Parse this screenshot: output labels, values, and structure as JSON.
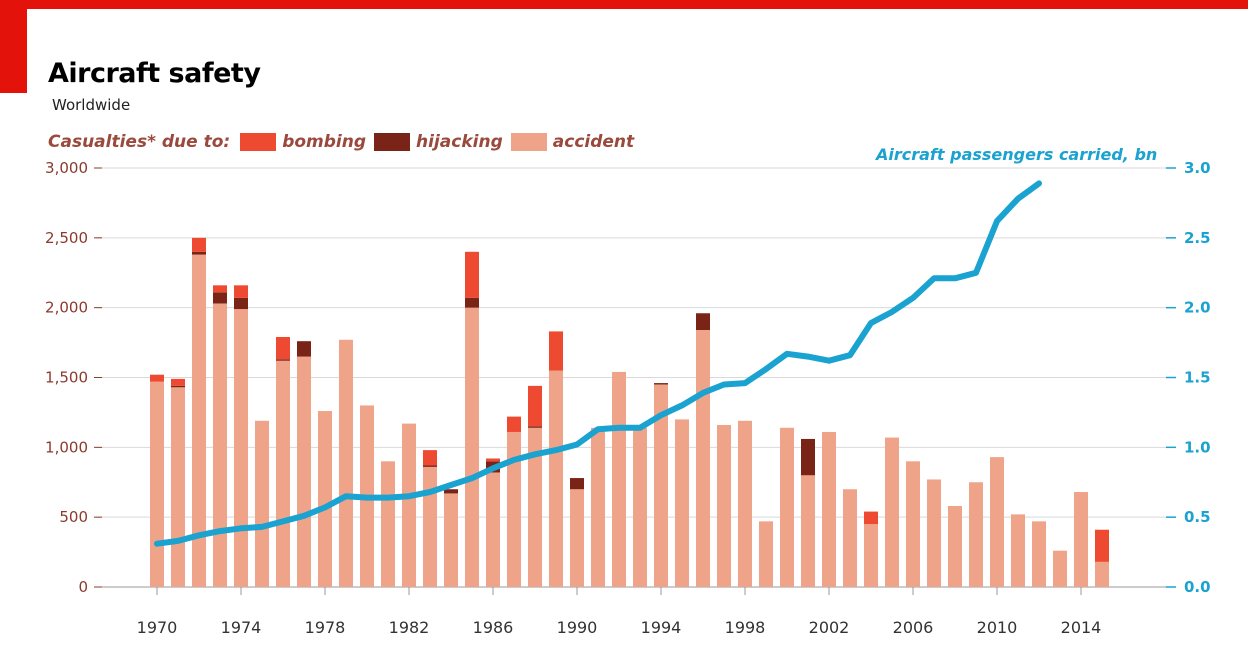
{
  "header": {
    "title": "Aircraft safety",
    "subtitle": "Worldwide"
  },
  "legend": {
    "label": "Casualties* due to:",
    "items": [
      {
        "name": "bombing",
        "color": "#ee4a32"
      },
      {
        "name": "hijacking",
        "color": "#7a2418"
      },
      {
        "name": "accident",
        "color": "#efa48a"
      }
    ]
  },
  "chart_data": {
    "type": "bar",
    "x": [
      1970,
      1971,
      1972,
      1973,
      1974,
      1975,
      1976,
      1977,
      1978,
      1979,
      1980,
      1981,
      1982,
      1983,
      1984,
      1985,
      1986,
      1987,
      1988,
      1989,
      1990,
      1991,
      1992,
      1993,
      1994,
      1995,
      1996,
      1997,
      1998,
      1999,
      2000,
      2001,
      2002,
      2003,
      2004,
      2005,
      2006,
      2007,
      2008,
      2009,
      2010,
      2011,
      2012,
      2013,
      2014,
      2015
    ],
    "x_tick_labels": [
      "1970",
      "1974",
      "1978",
      "1982",
      "1986",
      "1990",
      "1994",
      "1998",
      "2002",
      "2006",
      "2010",
      "2014"
    ],
    "series": [
      {
        "name": "accident",
        "color": "#efa48a",
        "values": [
          1470,
          1430,
          2380,
          2030,
          1990,
          1190,
          1620,
          1650,
          1260,
          1770,
          1300,
          900,
          1170,
          860,
          670,
          2000,
          820,
          1110,
          1140,
          1550,
          700,
          1140,
          1540,
          1140,
          1450,
          1200,
          1840,
          1160,
          1190,
          470,
          1140,
          800,
          1110,
          700,
          450,
          1070,
          900,
          770,
          580,
          750,
          930,
          520,
          470,
          260,
          680,
          180
        ]
      },
      {
        "name": "hijacking",
        "color": "#7a2418",
        "values": [
          0,
          10,
          20,
          80,
          80,
          0,
          10,
          110,
          0,
          0,
          0,
          0,
          0,
          10,
          30,
          70,
          80,
          0,
          10,
          0,
          80,
          0,
          0,
          0,
          10,
          0,
          120,
          0,
          0,
          0,
          0,
          260,
          0,
          0,
          0,
          0,
          0,
          0,
          0,
          0,
          0,
          0,
          0,
          0,
          0,
          0
        ]
      },
      {
        "name": "bombing",
        "color": "#ee4a32",
        "values": [
          50,
          50,
          100,
          50,
          90,
          0,
          160,
          0,
          0,
          0,
          0,
          0,
          0,
          110,
          0,
          330,
          20,
          110,
          290,
          280,
          0,
          0,
          0,
          0,
          0,
          0,
          0,
          0,
          0,
          0,
          0,
          0,
          0,
          0,
          90,
          0,
          0,
          0,
          0,
          0,
          0,
          0,
          0,
          0,
          0,
          230
        ]
      },
      {
        "name": "Aircraft passengers carried, bn",
        "axis": "right",
        "type": "line",
        "color": "#1aa2d0",
        "x": [
          1970,
          1971,
          1972,
          1973,
          1974,
          1975,
          1976,
          1977,
          1978,
          1979,
          1980,
          1981,
          1982,
          1983,
          1984,
          1985,
          1986,
          1987,
          1988,
          1989,
          1990,
          1991,
          1992,
          1993,
          1994,
          1995,
          1996,
          1997,
          1998,
          1999,
          2000,
          2001,
          2002,
          2003,
          2004,
          2005,
          2006,
          2007,
          2008,
          2009,
          2010,
          2011,
          2012
        ],
        "values": [
          0.31,
          0.33,
          0.37,
          0.4,
          0.42,
          0.43,
          0.47,
          0.51,
          0.57,
          0.65,
          0.64,
          0.64,
          0.65,
          0.68,
          0.73,
          0.78,
          0.85,
          0.91,
          0.95,
          0.98,
          1.02,
          1.13,
          1.14,
          1.14,
          1.23,
          1.3,
          1.39,
          1.45,
          1.46,
          1.56,
          1.67,
          1.65,
          1.62,
          1.66,
          1.89,
          1.97,
          2.07,
          2.21,
          2.21,
          2.25,
          2.62,
          2.78,
          2.89
        ]
      }
    ],
    "left_axis": {
      "ylim": [
        0,
        3000
      ],
      "ticks": [
        0,
        500,
        1000,
        1500,
        2000,
        2500,
        3000
      ],
      "tick_labels": [
        "0",
        "500",
        "1,000",
        "1,500",
        "2,000",
        "2,500",
        "3,000"
      ]
    },
    "right_axis": {
      "ylim": [
        0,
        3.0
      ],
      "ticks": [
        0,
        0.5,
        1.0,
        1.5,
        2.0,
        2.5,
        3.0
      ],
      "tick_labels": [
        "0.0",
        "0.5",
        "1.0",
        "1.5",
        "2.0",
        "2.5",
        "3.0"
      ],
      "label": "Aircraft passengers carried, bn"
    },
    "grid": true
  }
}
